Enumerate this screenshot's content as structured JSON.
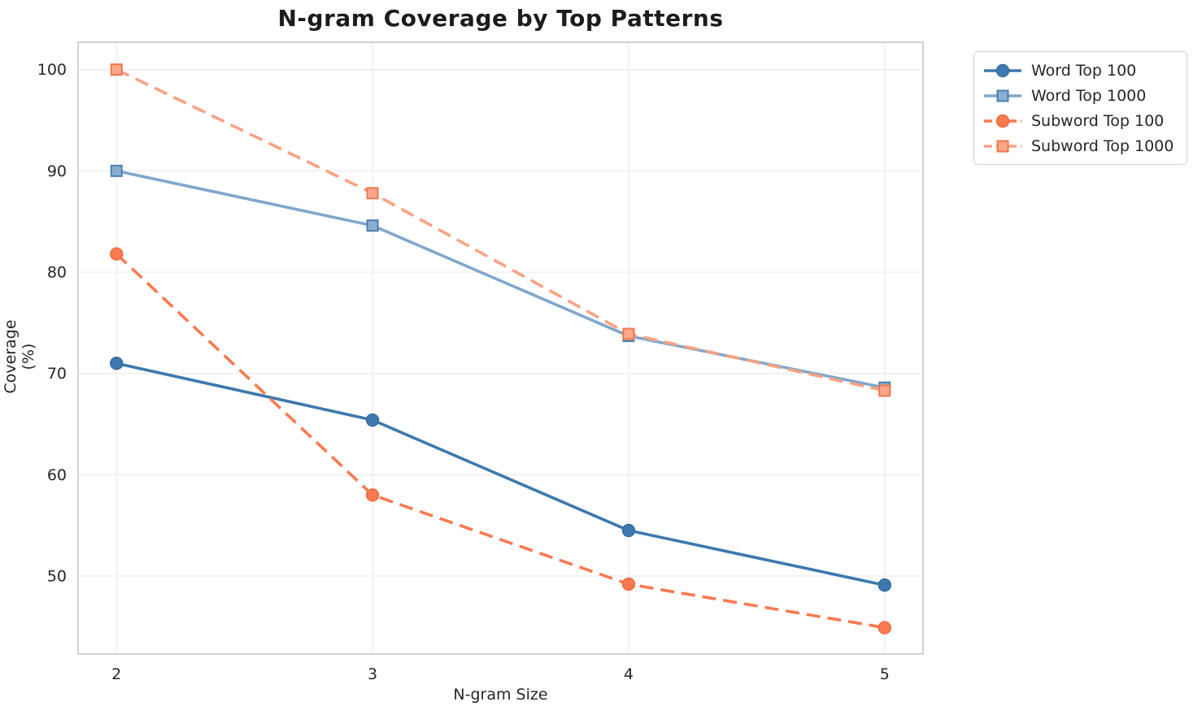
{
  "chart_data": {
    "type": "line",
    "title": "N-gram Coverage by Top Patterns",
    "xlabel": "N-gram Size",
    "ylabel": "Coverage (%)",
    "x": [
      2,
      3,
      4,
      5
    ],
    "xticks": [
      "2",
      "3",
      "4",
      "5"
    ],
    "yticks": [
      50,
      60,
      70,
      80,
      90,
      100
    ],
    "xlim": [
      1.85,
      5.15
    ],
    "ylim": [
      42.3,
      102.7
    ],
    "grid": true,
    "legend_position": "outside-top-right",
    "series": [
      {
        "name": "Word Top 100",
        "marker": "circle",
        "line_style": "solid",
        "color": "#3d79ae",
        "marker_fill": "#3d79ae",
        "marker_edge": "#336a9c",
        "values": [
          71.0,
          65.4,
          54.5,
          49.1
        ]
      },
      {
        "name": "Word Top 1000",
        "marker": "square",
        "line_style": "solid",
        "color": "#7fa7cc",
        "marker_fill": "#8aaed1",
        "marker_edge": "#4a80b0",
        "values": [
          90.0,
          84.6,
          73.7,
          68.6
        ]
      },
      {
        "name": "Subword Top 100",
        "marker": "circle",
        "line_style": "dashed",
        "color": "#f97a50",
        "marker_fill": "#f97a50",
        "marker_edge": "#ef6a40",
        "values": [
          81.8,
          58.0,
          49.2,
          44.9
        ]
      },
      {
        "name": "Subword Top 1000",
        "marker": "square",
        "line_style": "dashed",
        "color": "#fba183",
        "marker_fill": "#fca78a",
        "marker_edge": "#f2764d",
        "values": [
          100.0,
          87.8,
          73.9,
          68.3
        ]
      }
    ],
    "colors": {
      "grid": "#efefef",
      "spine": "#d2d2d2",
      "tick_text": "#262626",
      "title_text": "#1c1c1c",
      "background": "#ffffff"
    }
  }
}
